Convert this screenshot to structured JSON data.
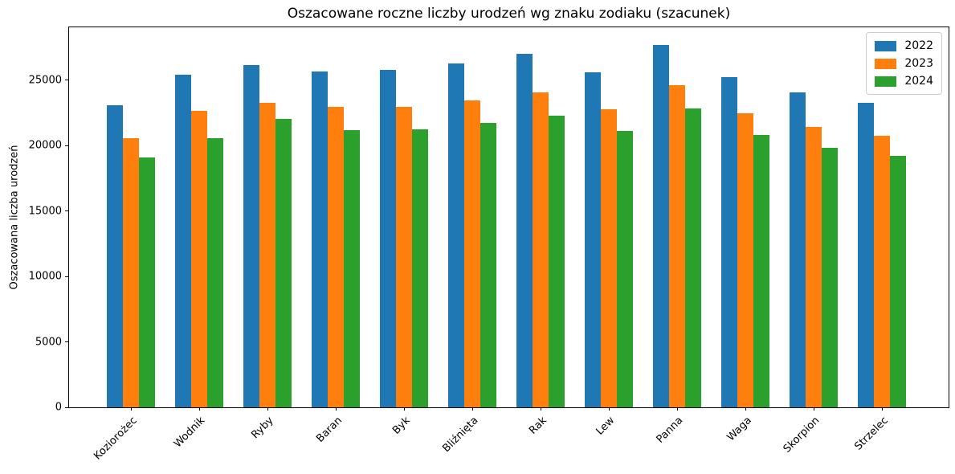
{
  "chart_data": {
    "type": "bar",
    "title": "Oszacowane roczne liczby urodzeń wg znaku zodiaku (szacunek)",
    "xlabel": "",
    "ylabel": "Oszacowana liczba urodzeń",
    "categories": [
      "Koziorożec",
      "Wodnik",
      "Ryby",
      "Baran",
      "Byk",
      "Bliźnięta",
      "Rak",
      "Lew",
      "Panna",
      "Waga",
      "Skorpion",
      "Strzelec"
    ],
    "series": [
      {
        "name": "2022",
        "color": "#1f77b4",
        "values": [
          23100,
          25400,
          26150,
          25650,
          25800,
          26300,
          27000,
          25600,
          27700,
          25250,
          24050,
          23250
        ]
      },
      {
        "name": "2023",
        "color": "#ff7f0e",
        "values": [
          20600,
          22650,
          23300,
          22950,
          23000,
          23450,
          24050,
          22800,
          24600,
          22450,
          21450,
          20750
        ]
      },
      {
        "name": "2024",
        "color": "#2ca02c",
        "values": [
          19100,
          20600,
          22050,
          21200,
          21250,
          21750,
          22300,
          21150,
          22850,
          20800,
          19850,
          19250
        ]
      }
    ],
    "yticks": [
      0,
      5000,
      10000,
      15000,
      20000,
      25000
    ],
    "ylim": [
      0,
      29050
    ],
    "legend_position": "upper right",
    "grid": false,
    "axis_color": "#000000",
    "legend_border_color": "#cccccc",
    "background_color": "#ffffff"
  }
}
